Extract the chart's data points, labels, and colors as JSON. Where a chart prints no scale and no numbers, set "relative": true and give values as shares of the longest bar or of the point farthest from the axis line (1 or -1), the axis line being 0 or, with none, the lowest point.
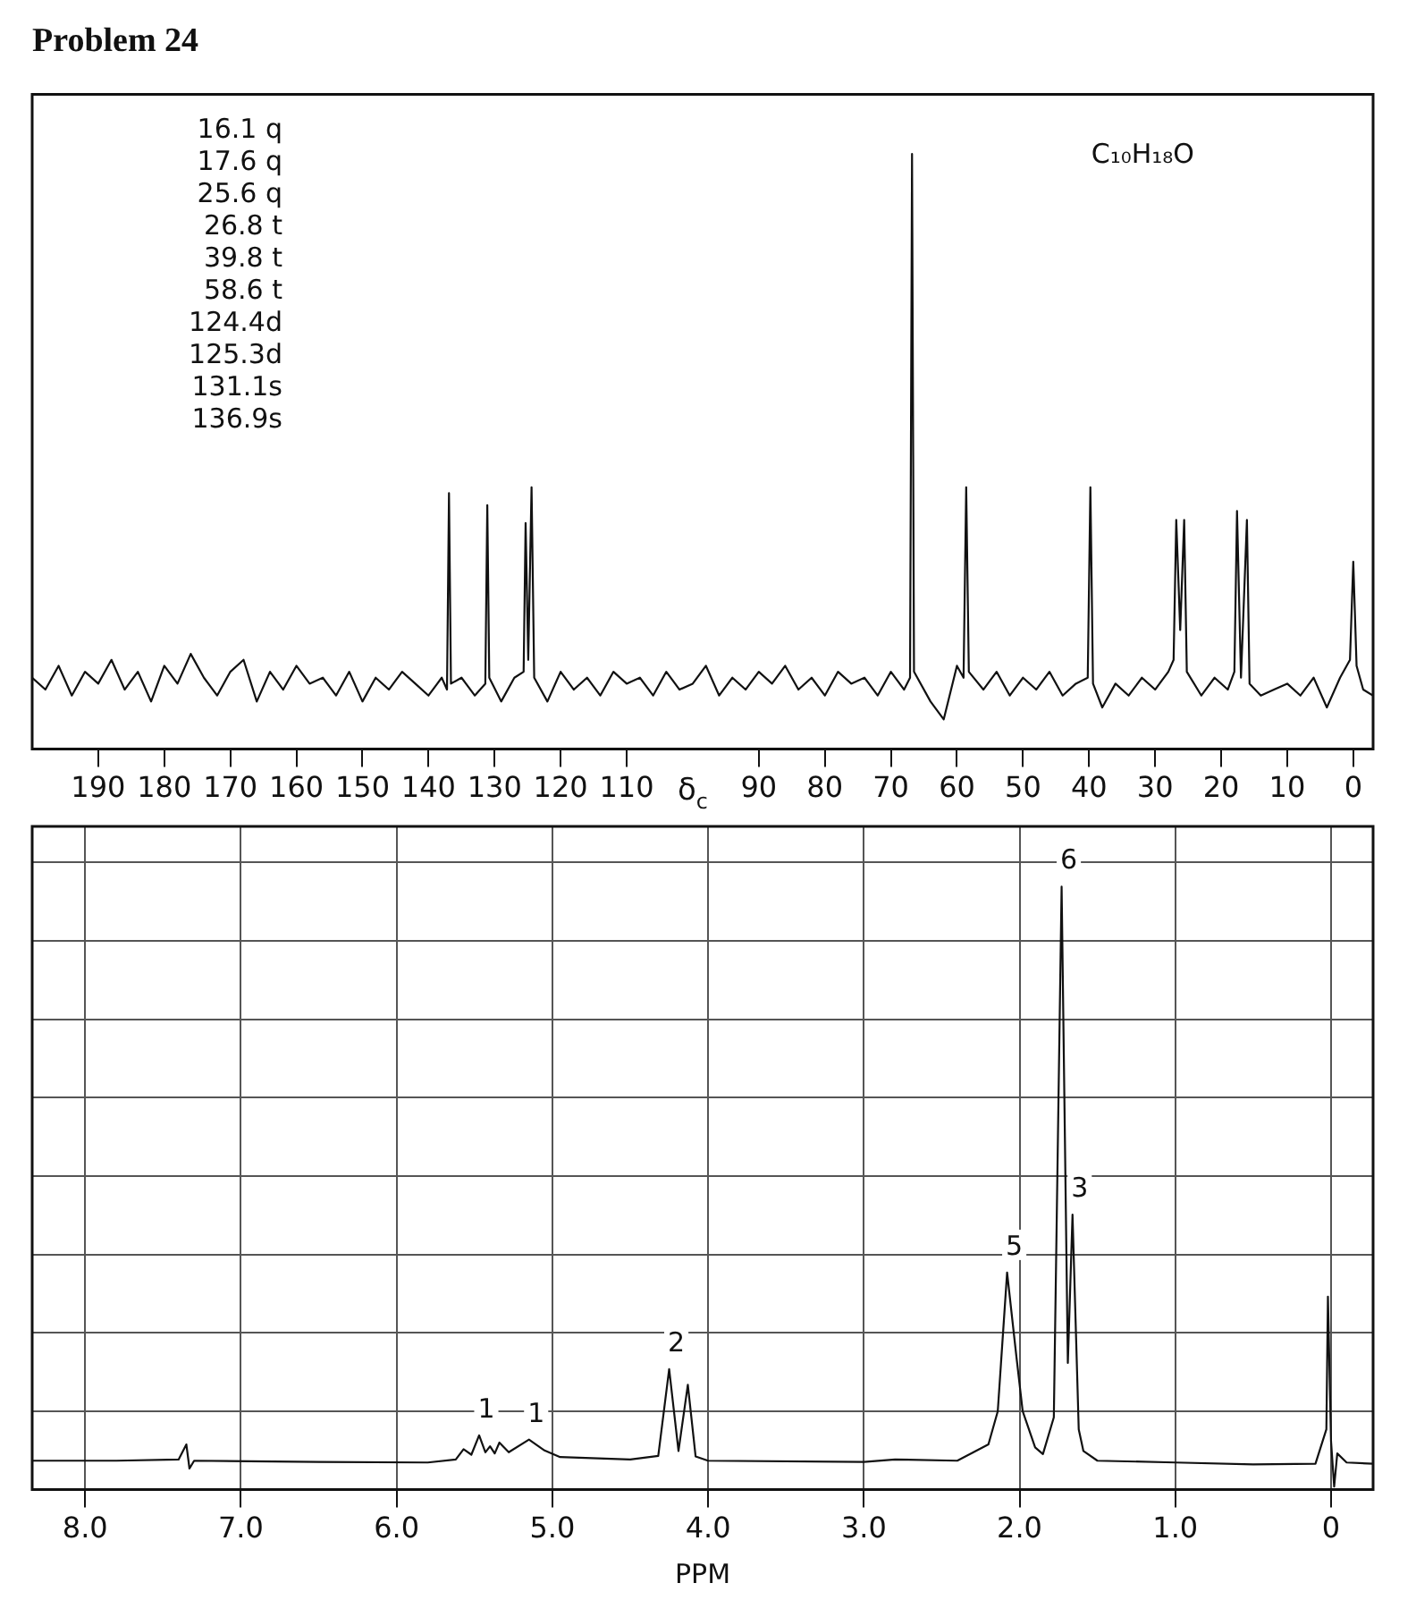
{
  "chart_data": [
    {
      "type": "line",
      "title": "Problem 24",
      "subtitle": "C₁₀H₁₈O",
      "xlabel": "δ$_{c}$",
      "relative": true,
      "xlim": [
        200,
        -3
      ],
      "xticks": [
        190,
        180,
        170,
        160,
        150,
        140,
        130,
        120,
        110,
        90,
        80,
        70,
        60,
        50,
        40,
        30,
        20,
        10,
        0
      ],
      "annotations": [
        "16.1 q",
        "17.6 q",
        "25.6 q",
        "26.8 t",
        "39.8 t",
        "58.6 t",
        "124.4d",
        "125.3d",
        "131.1s",
        "136.9s"
      ],
      "series": [
        {
          "color": "#111111",
          "x": [
            200,
            198,
            196,
            194,
            192,
            190,
            188,
            186,
            184,
            182,
            180,
            178,
            176,
            174,
            172,
            170,
            168,
            166,
            164,
            162,
            160,
            158,
            156,
            154,
            152,
            150,
            148,
            146,
            144,
            142,
            140,
            138,
            137.2,
            136.9,
            136.6,
            135,
            133,
            131.4,
            131.1,
            130.8,
            129,
            127,
            125.6,
            125.3,
            124.9,
            124.4,
            124.0,
            122,
            120,
            118,
            116,
            114,
            112,
            110,
            108,
            106,
            104,
            102,
            100,
            98,
            96,
            94,
            92,
            90,
            88,
            86,
            84,
            82,
            80,
            78,
            76,
            74,
            72,
            70,
            68,
            67.1,
            66.8,
            66.5,
            64,
            62,
            60,
            59,
            58.6,
            58.2,
            56,
            54,
            52,
            50,
            48,
            46,
            44,
            42,
            40.2,
            39.8,
            39.4,
            38,
            36,
            34,
            32,
            30,
            28,
            27.2,
            26.8,
            26.2,
            25.6,
            25.2,
            23,
            21,
            19,
            18,
            17.6,
            17.0,
            16.1,
            15.7,
            14,
            12,
            10,
            8,
            6,
            4,
            2,
            0.5,
            0,
            -0.5,
            -1.5,
            -3
          ],
          "values": [
            0.12,
            0.1,
            0.14,
            0.09,
            0.13,
            0.11,
            0.15,
            0.1,
            0.13,
            0.08,
            0.14,
            0.11,
            0.16,
            0.12,
            0.09,
            0.13,
            0.15,
            0.08,
            0.13,
            0.1,
            0.14,
            0.11,
            0.12,
            0.09,
            0.13,
            0.08,
            0.12,
            0.1,
            0.13,
            0.11,
            0.09,
            0.12,
            0.1,
            0.43,
            0.11,
            0.12,
            0.09,
            0.11,
            0.41,
            0.12,
            0.08,
            0.12,
            0.13,
            0.38,
            0.15,
            0.44,
            0.12,
            0.08,
            0.13,
            0.1,
            0.12,
            0.09,
            0.13,
            0.11,
            0.12,
            0.09,
            0.13,
            0.1,
            0.11,
            0.14,
            0.09,
            0.12,
            0.1,
            0.13,
            0.11,
            0.14,
            0.1,
            0.12,
            0.09,
            0.13,
            0.11,
            0.12,
            0.09,
            0.13,
            0.1,
            0.12,
            1.0,
            0.13,
            0.08,
            0.05,
            0.14,
            0.12,
            0.44,
            0.13,
            0.1,
            0.13,
            0.09,
            0.12,
            0.1,
            0.13,
            0.09,
            0.11,
            0.12,
            0.44,
            0.11,
            0.07,
            0.11,
            0.09,
            0.12,
            0.1,
            0.13,
            0.15,
            0.385,
            0.2,
            0.385,
            0.13,
            0.09,
            0.12,
            0.1,
            0.13,
            0.4,
            0.12,
            0.385,
            0.11,
            0.09,
            0.1,
            0.11,
            0.09,
            0.12,
            0.07,
            0.12,
            0.15,
            0.315,
            0.14,
            0.1,
            0.09
          ]
        }
      ]
    },
    {
      "type": "line",
      "xlabel": "PPM",
      "relative": true,
      "grid": true,
      "xlim": [
        8.34,
        -0.27
      ],
      "xticks": [
        {
          "value": 8,
          "label": "8.0"
        },
        {
          "value": 7,
          "label": "7.0"
        },
        {
          "value": 6,
          "label": "6.0"
        },
        {
          "value": 5,
          "label": "5.0"
        },
        {
          "value": 4,
          "label": "4.0"
        },
        {
          "value": 3,
          "label": "3.0"
        },
        {
          "value": 2,
          "label": "2.0"
        },
        {
          "value": 1,
          "label": "1.0"
        },
        0
      ],
      "annotations": [
        {
          "text": "1",
          "x": 5.47,
          "y": 0.09
        },
        {
          "text": "1",
          "x": 5.15,
          "y": 0.083
        },
        {
          "text": "2",
          "x": 4.25,
          "y": 0.2
        },
        {
          "text": "5",
          "x": 2.08,
          "y": 0.36
        },
        {
          "text": "6",
          "x": 1.73,
          "y": 1.0
        },
        {
          "text": "3",
          "x": 1.66,
          "y": 0.456
        }
      ],
      "series": [
        {
          "color": "#111111",
          "x": [
            8.34,
            7.8,
            7.4,
            7.35,
            7.33,
            7.3,
            6.5,
            5.8,
            5.62,
            5.57,
            5.52,
            5.47,
            5.43,
            5.4,
            5.37,
            5.34,
            5.28,
            5.15,
            5.05,
            4.95,
            4.5,
            4.32,
            4.25,
            4.19,
            4.13,
            4.08,
            4.0,
            3.0,
            2.8,
            2.4,
            2.2,
            2.14,
            2.08,
            2.02,
            1.98,
            1.9,
            1.85,
            1.78,
            1.73,
            1.69,
            1.66,
            1.62,
            1.59,
            1.5,
            1.0,
            0.5,
            0.1,
            0.03,
            0.02,
            0.0,
            -0.02,
            -0.04,
            -0.1,
            -0.27
          ],
          "values": [
            0.048,
            0.048,
            0.05,
            0.075,
            0.035,
            0.048,
            0.046,
            0.045,
            0.05,
            0.067,
            0.058,
            0.09,
            0.062,
            0.072,
            0.06,
            0.078,
            0.062,
            0.083,
            0.065,
            0.054,
            0.05,
            0.056,
            0.2,
            0.064,
            0.174,
            0.055,
            0.048,
            0.046,
            0.05,
            0.048,
            0.075,
            0.13,
            0.36,
            0.22,
            0.13,
            0.07,
            0.059,
            0.12,
            1.0,
            0.21,
            0.456,
            0.1,
            0.064,
            0.048,
            0.045,
            0.042,
            0.043,
            0.1,
            0.32,
            0.08,
            0.005,
            0.06,
            0.045,
            0.043
          ]
        }
      ]
    }
  ]
}
